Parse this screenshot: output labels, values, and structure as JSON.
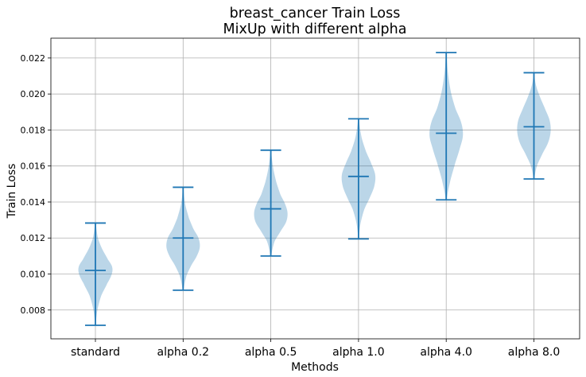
{
  "chart_data": {
    "type": "violin",
    "title": "breast_cancer Train Loss\nMixUp with different alpha",
    "title_lines": [
      "breast_cancer Train Loss",
      "MixUp with different alpha"
    ],
    "xlabel": "Methods",
    "ylabel": "Train Loss",
    "categories": [
      "standard",
      "alpha 0.2",
      "alpha 0.5",
      "alpha 1.0",
      "alpha 4.0",
      "alpha 8.0"
    ],
    "ylim": [
      0.0064,
      0.0231
    ],
    "yticks": [
      0.008,
      0.01,
      0.012,
      0.014,
      0.016,
      0.018,
      0.02,
      0.022
    ],
    "ytick_labels": [
      "0.008",
      "0.010",
      "0.012",
      "0.014",
      "0.016",
      "0.018",
      "0.020",
      "0.022"
    ],
    "grid": true,
    "colors": {
      "fill": "#1f77b4",
      "fill_opacity": 0.3,
      "line": "#1f77b4"
    },
    "series": [
      {
        "category": "standard",
        "min": 0.00715,
        "mean": 0.0102,
        "max": 0.01283,
        "mode": 0.0102,
        "density_y": [
          0.00715,
          0.008,
          0.0088,
          0.0095,
          0.01,
          0.0104,
          0.0108,
          0.0114,
          0.012,
          0.01283
        ],
        "density_w": [
          0.02,
          0.12,
          0.35,
          0.72,
          0.98,
          1.0,
          0.75,
          0.4,
          0.15,
          0.03
        ]
      },
      {
        "category": "alpha 0.2",
        "min": 0.0091,
        "mean": 0.012,
        "max": 0.01482,
        "mode": 0.0118,
        "density_y": [
          0.0091,
          0.0099,
          0.0105,
          0.011,
          0.0115,
          0.012,
          0.0125,
          0.0131,
          0.0139,
          0.01482
        ],
        "density_w": [
          0.03,
          0.2,
          0.5,
          0.82,
          1.0,
          0.92,
          0.62,
          0.35,
          0.12,
          0.02
        ]
      },
      {
        "category": "alpha 0.5",
        "min": 0.011,
        "mean": 0.01362,
        "max": 0.01688,
        "mode": 0.0132,
        "density_y": [
          0.011,
          0.0118,
          0.0124,
          0.0129,
          0.0134,
          0.0139,
          0.0144,
          0.0151,
          0.0159,
          0.01688
        ],
        "density_w": [
          0.03,
          0.22,
          0.6,
          0.92,
          1.0,
          0.85,
          0.58,
          0.33,
          0.14,
          0.02
        ]
      },
      {
        "category": "alpha 1.0",
        "min": 0.01195,
        "mean": 0.01542,
        "max": 0.01862,
        "mode": 0.0152,
        "density_y": [
          0.01195,
          0.0128,
          0.0136,
          0.0143,
          0.0149,
          0.0155,
          0.0161,
          0.0168,
          0.0176,
          0.01862
        ],
        "density_w": [
          0.02,
          0.12,
          0.35,
          0.7,
          0.95,
          1.0,
          0.78,
          0.45,
          0.18,
          0.03
        ]
      },
      {
        "category": "alpha 4.0",
        "min": 0.01412,
        "mean": 0.01782,
        "max": 0.0223,
        "mode": 0.0178,
        "density_y": [
          0.01412,
          0.0152,
          0.0162,
          0.017,
          0.0177,
          0.0184,
          0.0192,
          0.0201,
          0.0212,
          0.0223
        ],
        "density_w": [
          0.03,
          0.25,
          0.55,
          0.82,
          1.0,
          0.9,
          0.55,
          0.28,
          0.1,
          0.02
        ]
      },
      {
        "category": "alpha 8.0",
        "min": 0.01528,
        "mean": 0.01818,
        "max": 0.02118,
        "mode": 0.0183,
        "density_y": [
          0.01528,
          0.016,
          0.0167,
          0.0173,
          0.0179,
          0.0185,
          0.0191,
          0.0198,
          0.0205,
          0.02118
        ],
        "density_w": [
          0.03,
          0.18,
          0.52,
          0.85,
          1.0,
          0.95,
          0.7,
          0.38,
          0.12,
          0.02
        ]
      }
    ]
  }
}
